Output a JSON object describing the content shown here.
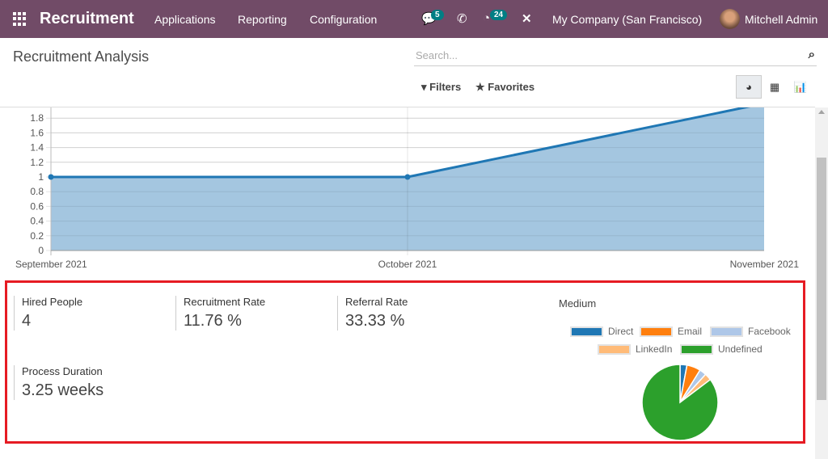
{
  "navbar": {
    "app": "Recruitment",
    "menu": [
      "Applications",
      "Reporting",
      "Configuration"
    ],
    "messages_count": "5",
    "activities_count": "24",
    "company": "My Company (San Francisco)",
    "user": "Mitchell Admin"
  },
  "control_panel": {
    "title": "Recruitment Analysis",
    "search_placeholder": "Search...",
    "filters": "Filters",
    "favorites": "Favorites"
  },
  "colors": {
    "navbar": "#714B67",
    "line": "#1f77b4",
    "area": "#a4c6e0",
    "highlight": "#e61b23"
  },
  "chart_data": [
    {
      "type": "area",
      "x": [
        "September 2021",
        "October 2021",
        "November 2021"
      ],
      "values": [
        1,
        1,
        2
      ],
      "yticks": [
        "0",
        "0.2",
        "0.4",
        "0.6",
        "0.8",
        "1",
        "1.2",
        "1.4",
        "1.6",
        "1.8"
      ],
      "ylim": [
        0,
        1.95
      ],
      "grid": true
    },
    {
      "type": "pie",
      "title": "Medium",
      "categories": [
        "Direct",
        "Email",
        "Facebook",
        "LinkedIn",
        "Undefined"
      ],
      "values": [
        1,
        2,
        1,
        1,
        29
      ],
      "colors": [
        "#1f77b4",
        "#ff7f0e",
        "#aec7e8",
        "#ffbb78",
        "#2ca02c"
      ],
      "legend": "top"
    }
  ],
  "kpis": [
    {
      "label": "Hired People",
      "value": "4"
    },
    {
      "label": "Recruitment Rate",
      "value": "11.76 %"
    },
    {
      "label": "Referral Rate",
      "value": "33.33 %"
    },
    {
      "label": "Process Duration",
      "value": "3.25 weeks"
    }
  ]
}
